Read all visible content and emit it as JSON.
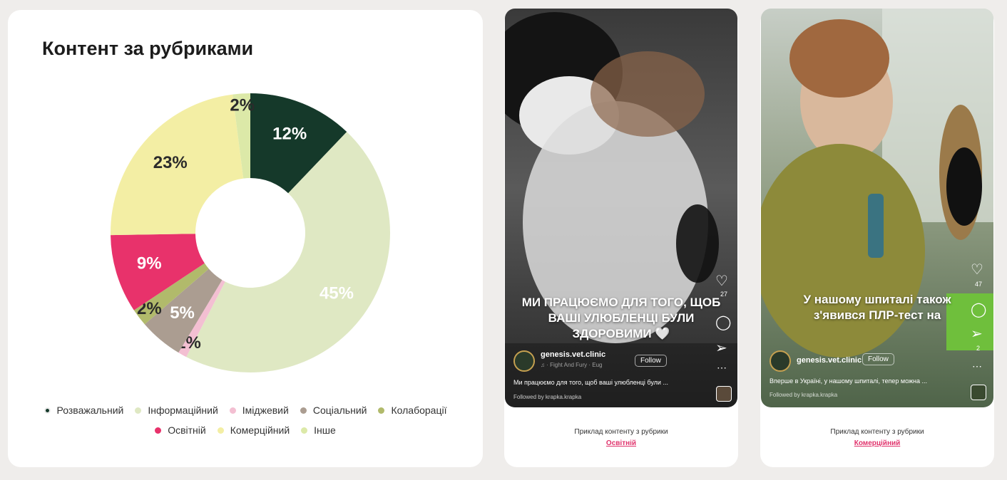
{
  "chart_data": {
    "type": "pie",
    "title": "Контент за рубриками",
    "slices": [
      {
        "label": "Розважальний",
        "value": 12,
        "display": "12%",
        "color": "#15392a"
      },
      {
        "label": "Інформаційний",
        "value": 45,
        "display": "45%",
        "color": "#dfe8c3"
      },
      {
        "label": "Іміджевий",
        "value": 1,
        "display": "1%",
        "color": "#f3bfd2"
      },
      {
        "label": "Соціальний",
        "value": 5,
        "display": "5%",
        "color": "#ab9d91"
      },
      {
        "label": "Колаборації",
        "value": 2,
        "display": "2%",
        "color": "#b1ba6b"
      },
      {
        "label": "Освітній",
        "value": 9,
        "display": "9%",
        "color": "#e8326b"
      },
      {
        "label": "Комерційний",
        "value": 23,
        "display": "23%",
        "color": "#f3eea4"
      },
      {
        "label": "Інше",
        "value": 2,
        "display": "2%",
        "color": "#dce9a8"
      }
    ],
    "legend_position": "bottom"
  },
  "examples": [
    {
      "overlay_text": "МИ ПРАЦЮЄМО ДЛЯ ТОГО, ЩОБ ВАШІ УЛЮБЛЕНЦІ БУЛИ ЗДОРОВИМИ 🤍",
      "username": "genesis.vet.clinic",
      "follow": "Follow",
      "audio": "♫ · Fight And Fury · Eug",
      "caption": "Ми працюємо для того, щоб ваші улюбленці були ...",
      "followed_by": "Followed by krapka.krapka",
      "like_count": "27",
      "share_count": "",
      "label": "Приклад контенту з рубрики",
      "link": "Освітній",
      "colors": {
        "top": "#2e2e2e",
        "mid": "#4a4a4a",
        "bottom": "#1f1f1f"
      }
    },
    {
      "overlay_text": "У нашому шпиталі також з'явився ПЛР-тест на",
      "username": "genesis.vet.clinic",
      "follow": "Follow",
      "audio": "",
      "caption": "Вперше в Україні, у нашому шпиталі, тепер можна ...",
      "followed_by": "Followed by krapka.krapka",
      "like_count": "47",
      "share_count": "2",
      "label": "Приклад контенту з рубрики",
      "link": "Комерційний",
      "colors": {
        "top": "#c9cfc8",
        "mid": "#8b9a7a",
        "bottom": "#566a52"
      }
    }
  ]
}
